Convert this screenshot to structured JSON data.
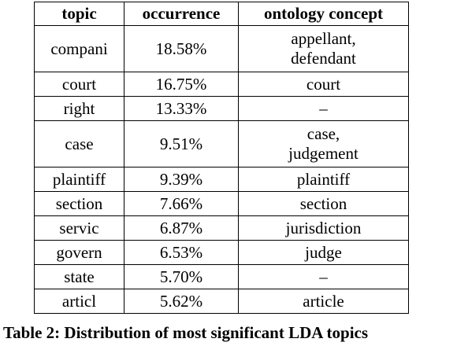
{
  "table": {
    "headers": [
      "topic",
      "occurrence",
      "ontology concept"
    ],
    "rows": [
      {
        "topic": "compani",
        "occurrence": "18.58%",
        "concept": [
          "appellant,",
          "defendant"
        ]
      },
      {
        "topic": "court",
        "occurrence": "16.75%",
        "concept": [
          "court"
        ]
      },
      {
        "topic": "right",
        "occurrence": "13.33%",
        "concept": [
          "–"
        ]
      },
      {
        "topic": "case",
        "occurrence": "9.51%",
        "concept": [
          "case,",
          "judgement"
        ]
      },
      {
        "topic": "plaintiff",
        "occurrence": "9.39%",
        "concept": [
          "plaintiff"
        ]
      },
      {
        "topic": "section",
        "occurrence": "7.66%",
        "concept": [
          "section"
        ]
      },
      {
        "topic": "servic",
        "occurrence": "6.87%",
        "concept": [
          "jurisdiction"
        ]
      },
      {
        "topic": "govern",
        "occurrence": "6.53%",
        "concept": [
          "judge"
        ]
      },
      {
        "topic": "state",
        "occurrence": "5.70%",
        "concept": [
          "–"
        ]
      },
      {
        "topic": "articl",
        "occurrence": "5.62%",
        "concept": [
          "article"
        ]
      }
    ]
  },
  "caption": "Table 2: Distribution of most significant LDA topics"
}
